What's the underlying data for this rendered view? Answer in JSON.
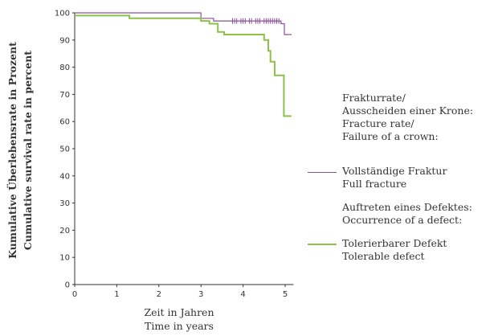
{
  "chart_data": {
    "type": "line",
    "xlabel": [
      "Zeit in Jahren",
      "Time in years"
    ],
    "ylabel": [
      "Kumulative Überlebensrate in Prozent",
      "Cumulative survival rate in percent"
    ],
    "xlim": [
      0,
      5.2
    ],
    "ylim": [
      0,
      100
    ],
    "xticks": [
      "0",
      "1",
      "2",
      "3",
      "4",
      "5"
    ],
    "yticks": [
      "0",
      "10",
      "20",
      "30",
      "40",
      "50",
      "60",
      "70",
      "80",
      "90",
      "100"
    ],
    "grid": false,
    "series": [
      {
        "name": "Vollständige Fraktur / Full fracture",
        "color": "#8c4f9a",
        "step": true,
        "points": [
          [
            0,
            100
          ],
          [
            3.0,
            100
          ],
          [
            3.0,
            98
          ],
          [
            3.3,
            98
          ],
          [
            3.3,
            97
          ],
          [
            4.9,
            97
          ],
          [
            4.9,
            96
          ],
          [
            4.98,
            96
          ],
          [
            4.98,
            92
          ],
          [
            5.15,
            92
          ]
        ],
        "censor_x": [
          3.75,
          3.8,
          3.85,
          3.95,
          4.0,
          4.05,
          4.15,
          4.2,
          4.3,
          4.35,
          4.4,
          4.5,
          4.55,
          4.6,
          4.65,
          4.7,
          4.75,
          4.8,
          4.85
        ]
      },
      {
        "name": "Tolerierbarer Defekt / Tolerable defect",
        "color": "#8fc04a",
        "step": true,
        "points": [
          [
            0,
            99
          ],
          [
            1.3,
            99
          ],
          [
            1.3,
            98
          ],
          [
            3.0,
            98
          ],
          [
            3.0,
            97
          ],
          [
            3.2,
            97
          ],
          [
            3.2,
            96
          ],
          [
            3.4,
            96
          ],
          [
            3.4,
            93
          ],
          [
            3.55,
            93
          ],
          [
            3.55,
            92
          ],
          [
            4.5,
            92
          ],
          [
            4.5,
            90
          ],
          [
            4.6,
            90
          ],
          [
            4.6,
            86
          ],
          [
            4.65,
            86
          ],
          [
            4.65,
            82
          ],
          [
            4.75,
            82
          ],
          [
            4.75,
            77
          ],
          [
            4.97,
            77
          ],
          [
            4.97,
            62
          ],
          [
            5.15,
            62
          ]
        ]
      }
    ],
    "legend": {
      "header1": [
        "Frakturrate/",
        "Ausscheiden einer Krone:",
        "Fracture rate/",
        "Failure of a crown:"
      ],
      "item1": [
        "Vollständige Fraktur",
        "Full fracture"
      ],
      "header2": [
        "Auftreten eines Defektes:",
        "Occurrence of a defect:"
      ],
      "item2": [
        "Tolerierbarer Defekt",
        "Tolerable defect"
      ]
    }
  }
}
